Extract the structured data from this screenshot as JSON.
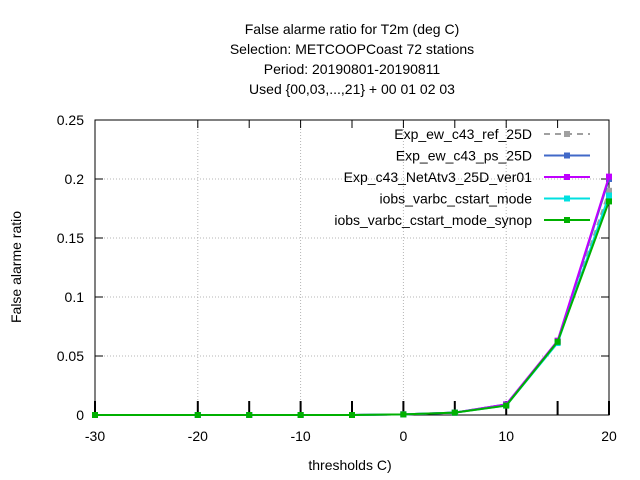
{
  "chart_data": {
    "type": "line",
    "title_lines": [
      "False alarme ratio  for T2m (deg C)",
      "Selection: METCOOPCoast     72 stations",
      "Period: 20190801-20190811",
      "Used {00,03,...,21} + 00 01 02 03"
    ],
    "xlabel": "thresholds C)",
    "ylabel": "False alarme ratio",
    "xlim": [
      -30,
      20
    ],
    "ylim": [
      0,
      0.25
    ],
    "xticks": [
      -30,
      -20,
      -10,
      0,
      10,
      20
    ],
    "xtick_labels": [
      "-30",
      "-20",
      "-10",
      "0",
      "10",
      "20"
    ],
    "yticks": [
      0,
      0.05,
      0.1,
      0.15,
      0.2,
      0.25
    ],
    "ytick_labels": [
      "0",
      "0.05",
      "0.1",
      "0.15",
      "0.2",
      "0.25"
    ],
    "grid": true,
    "legend_position": "top-right",
    "x": [
      -30,
      -20,
      -15,
      -10,
      -5,
      0,
      5,
      10,
      15,
      20
    ],
    "series": [
      {
        "name": "Exp_ew_c43_ref_25D",
        "color": "#a0a0a0",
        "dashed": true,
        "values": [
          0,
          0,
          0,
          0,
          0,
          0.0005,
          0.002,
          0.009,
          0.062,
          0.19
        ]
      },
      {
        "name": "Exp_ew_c43_ps_25D",
        "color": "#4169c8",
        "dashed": false,
        "values": [
          0,
          0,
          0,
          0,
          0,
          0.0005,
          0.002,
          0.009,
          0.062,
          0.2
        ]
      },
      {
        "name": "Exp_c43_NetAtv3_25D_ver01",
        "color": "#c000ff",
        "dashed": false,
        "values": [
          0,
          0,
          0,
          0,
          0,
          0.0005,
          0.002,
          0.009,
          0.063,
          0.202
        ]
      },
      {
        "name": "iobs_varbc_cstart_mode",
        "color": "#00e0e0",
        "dashed": false,
        "values": [
          0,
          0,
          0,
          0,
          0,
          0.0005,
          0.002,
          0.008,
          0.061,
          0.186
        ]
      },
      {
        "name": "iobs_varbc_cstart_mode_synop",
        "color": "#00b000",
        "dashed": false,
        "values": [
          0,
          0,
          0,
          0,
          0,
          0.0005,
          0.002,
          0.008,
          0.062,
          0.181
        ]
      }
    ]
  }
}
